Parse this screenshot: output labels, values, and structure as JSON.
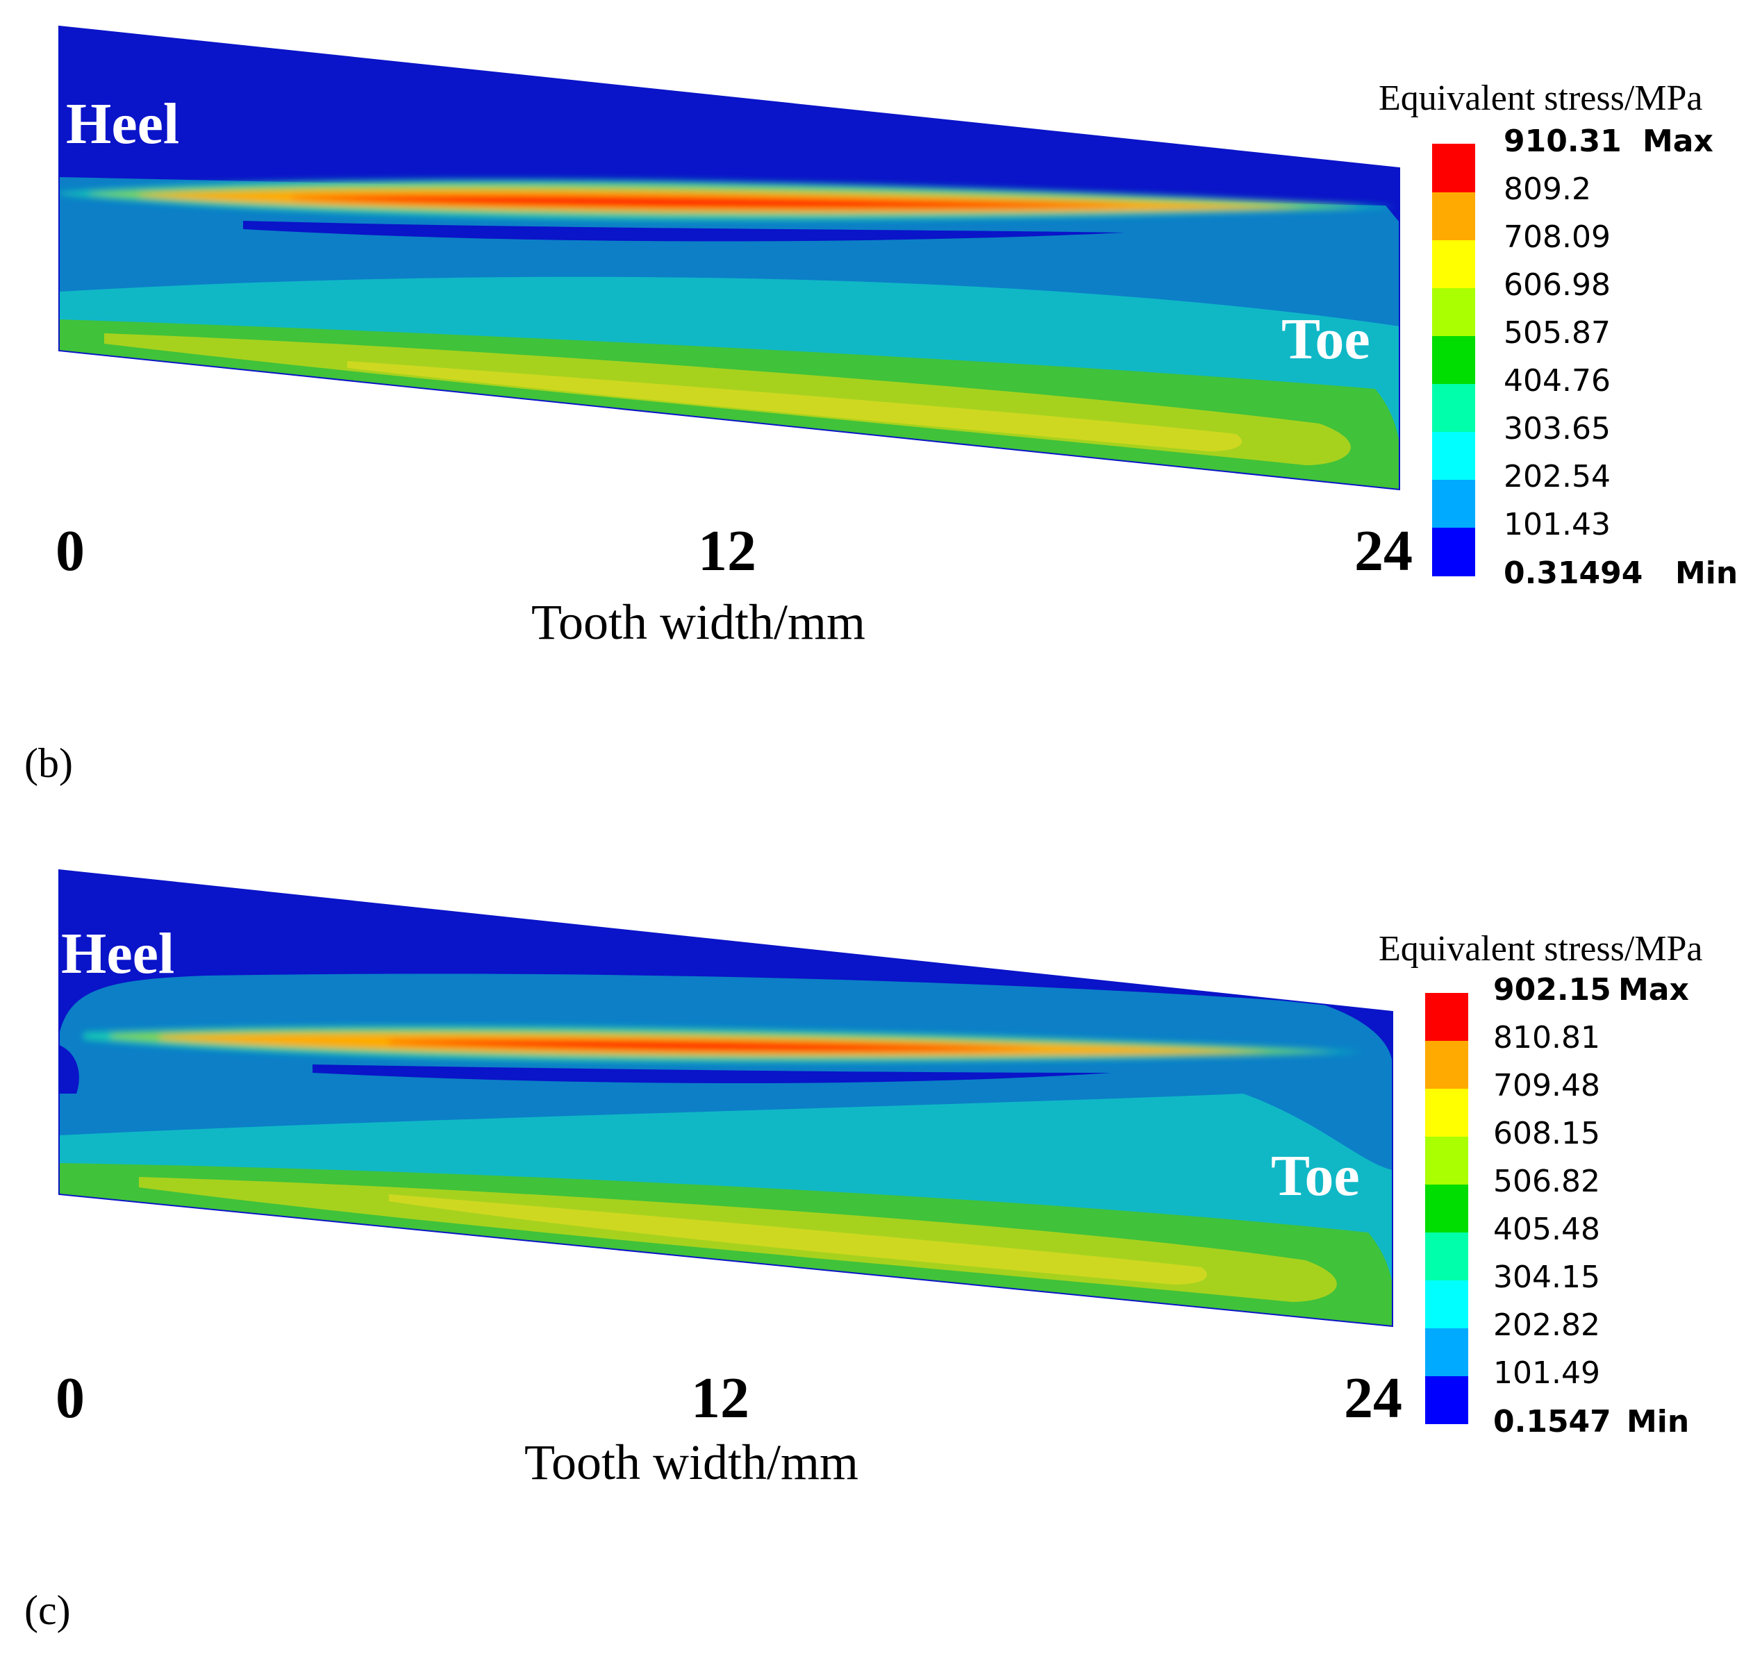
{
  "chart_data": [
    {
      "type": "heatmap",
      "panel_label": "(b)",
      "xlabel": "Tooth width/mm",
      "x_ticks": [
        "0",
        "12",
        "24"
      ],
      "region_labels": {
        "heel": "Heel",
        "toe": "Toe"
      },
      "legend_title": "Equivalent stress/MPa",
      "legend_levels": [
        910.31,
        809.2,
        708.09,
        606.98,
        505.87,
        404.76,
        303.65,
        202.54,
        101.43,
        0.31494
      ],
      "legend_labels": [
        "910.31",
        "809.2",
        "708.09",
        "606.98",
        "505.87",
        "404.76",
        "303.65",
        "202.54",
        "101.43",
        "0.31494"
      ],
      "max_tag": "Max",
      "min_tag": "Min",
      "legend_placement": "right"
    },
    {
      "type": "heatmap",
      "panel_label": "(c)",
      "xlabel": "Tooth width/mm",
      "x_ticks": [
        "0",
        "12",
        "24"
      ],
      "region_labels": {
        "heel": "Heel",
        "toe": "Toe"
      },
      "legend_title": "Equivalent stress/MPa",
      "legend_levels": [
        902.15,
        810.81,
        709.48,
        608.15,
        506.82,
        405.48,
        304.15,
        202.82,
        101.49,
        0.1547
      ],
      "legend_labels": [
        "902.15",
        "810.81",
        "709.48",
        "608.15",
        "506.82",
        "405.48",
        "304.15",
        "202.82",
        "101.49",
        "0.1547"
      ],
      "max_tag": "Max",
      "min_tag": "Min",
      "legend_placement": "right"
    }
  ],
  "colors": {
    "contour_bands_high_to_low": [
      "#ff0000",
      "#ffaa00",
      "#ffff00",
      "#aaff00",
      "#00dd00",
      "#00ffaa",
      "#00ffff",
      "#00aaff",
      "#0000ff"
    ],
    "background_region": "#0a14c8",
    "mid_region": "#0c7fc7",
    "lower_region": "#10b8c6",
    "band_green": "#40c23a",
    "band_yellow": "#c8d820"
  }
}
